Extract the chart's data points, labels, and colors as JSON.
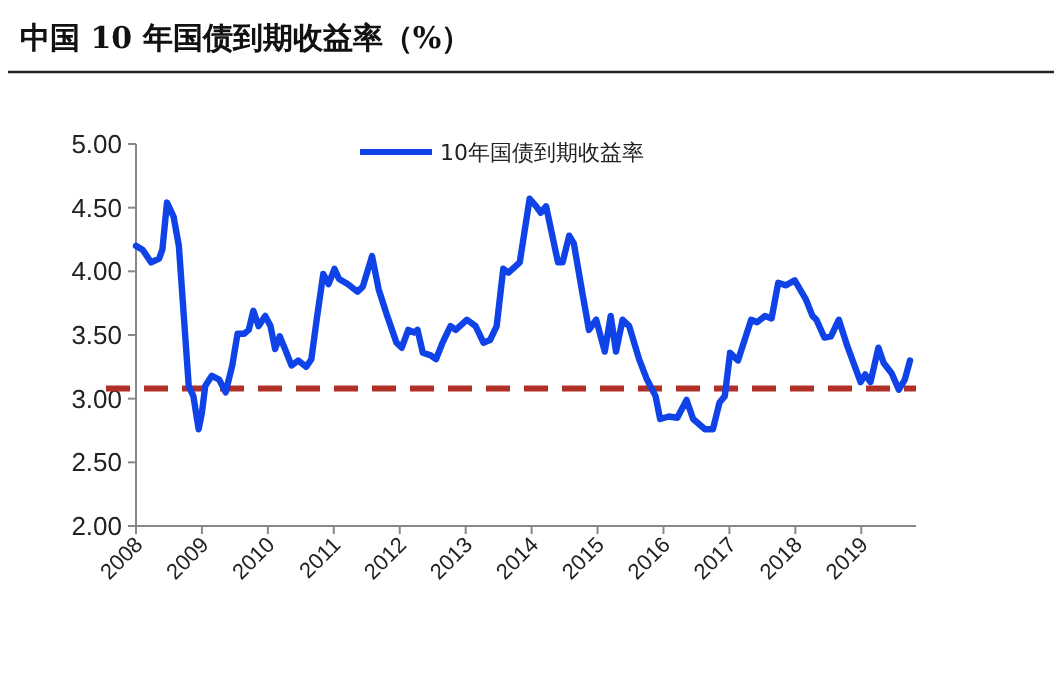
{
  "chart_data": {
    "type": "line",
    "title": "中国 10 年国债到期收益率（%）",
    "x": [
      2008.0,
      2008.1,
      2008.23,
      2008.35,
      2008.4,
      2008.47,
      2008.57,
      2008.65,
      2008.8,
      2008.87,
      2008.95,
      2009.0,
      2009.05,
      2009.15,
      2009.26,
      2009.36,
      2009.46,
      2009.54,
      2009.64,
      2009.71,
      2009.78,
      2009.86,
      2009.96,
      2010.04,
      2010.11,
      2010.18,
      2010.26,
      2010.36,
      2010.46,
      2010.58,
      2010.66,
      2010.74,
      2010.84,
      2010.92,
      2011.01,
      2011.08,
      2011.21,
      2011.36,
      2011.44,
      2011.58,
      2011.68,
      2011.81,
      2011.95,
      2012.03,
      2012.13,
      2012.22,
      2012.27,
      2012.35,
      2012.47,
      2012.55,
      2012.65,
      2012.77,
      2012.85,
      2013.02,
      2013.15,
      2013.27,
      2013.37,
      2013.47,
      2013.57,
      2013.65,
      2013.82,
      2013.97,
      2014.07,
      2014.14,
      2014.22,
      2014.4,
      2014.47,
      2014.57,
      2014.64,
      2014.77,
      2014.87,
      2014.98,
      2015.11,
      2015.2,
      2015.28,
      2015.38,
      2015.48,
      2015.63,
      2015.75,
      2015.88,
      2015.95,
      2016.08,
      2016.21,
      2016.35,
      2016.45,
      2016.63,
      2016.75,
      2016.85,
      2016.93,
      2017.01,
      2017.13,
      2017.33,
      2017.42,
      2017.54,
      2017.64,
      2017.74,
      2017.86,
      2017.99,
      2018.16,
      2018.26,
      2018.32,
      2018.44,
      2018.54,
      2018.66,
      2018.79,
      2018.99,
      2019.06,
      2019.14,
      2019.26,
      2019.34,
      2019.46,
      2019.57,
      2019.66,
      2019.74
    ],
    "series": [
      {
        "name": "10年国债到期收益率",
        "color": "#0f43e8",
        "values": [
          4.2,
          4.17,
          4.07,
          4.1,
          4.17,
          4.54,
          4.43,
          4.2,
          3.1,
          3.02,
          2.76,
          2.89,
          3.1,
          3.18,
          3.15,
          3.05,
          3.26,
          3.51,
          3.51,
          3.54,
          3.69,
          3.57,
          3.65,
          3.57,
          3.39,
          3.49,
          3.39,
          3.26,
          3.3,
          3.25,
          3.31,
          3.62,
          3.98,
          3.9,
          4.02,
          3.94,
          3.9,
          3.84,
          3.88,
          4.12,
          3.86,
          3.65,
          3.44,
          3.4,
          3.54,
          3.52,
          3.54,
          3.36,
          3.34,
          3.31,
          3.44,
          3.57,
          3.54,
          3.62,
          3.57,
          3.44,
          3.46,
          3.57,
          4.02,
          3.99,
          4.07,
          4.57,
          4.51,
          4.46,
          4.51,
          4.07,
          4.07,
          4.28,
          4.22,
          3.83,
          3.54,
          3.62,
          3.37,
          3.65,
          3.37,
          3.62,
          3.57,
          3.31,
          3.15,
          3.02,
          2.84,
          2.86,
          2.85,
          2.99,
          2.84,
          2.76,
          2.76,
          2.97,
          3.02,
          3.36,
          3.3,
          3.62,
          3.6,
          3.65,
          3.63,
          3.91,
          3.89,
          3.93,
          3.78,
          3.65,
          3.62,
          3.48,
          3.49,
          3.62,
          3.41,
          3.13,
          3.19,
          3.13,
          3.4,
          3.28,
          3.2,
          3.07,
          3.15,
          3.3
        ]
      }
    ],
    "xlim": [
      2008,
      2019.83
    ],
    "xticks": [
      2008,
      2009,
      2010,
      2011,
      2012,
      2013,
      2014,
      2015,
      2016,
      2017,
      2018,
      2019
    ],
    "ylim": [
      2,
      5
    ],
    "yticks": [
      {
        "value": 2,
        "label": "2.00"
      },
      {
        "value": 2.5,
        "label": "2.50"
      },
      {
        "value": 3,
        "label": "3.00"
      },
      {
        "value": 3.5,
        "label": "3.50"
      },
      {
        "value": 4,
        "label": "4.00"
      },
      {
        "value": 4.5,
        "label": "4.50"
      },
      {
        "value": 5,
        "label": "5.00"
      }
    ],
    "ref_lines": [
      {
        "axis": "y",
        "value": 3.08,
        "color": "#b03028",
        "line_style": "dashed"
      }
    ],
    "legend": "top right",
    "grid": false,
    "marker": "none",
    "line_style": "solid"
  }
}
